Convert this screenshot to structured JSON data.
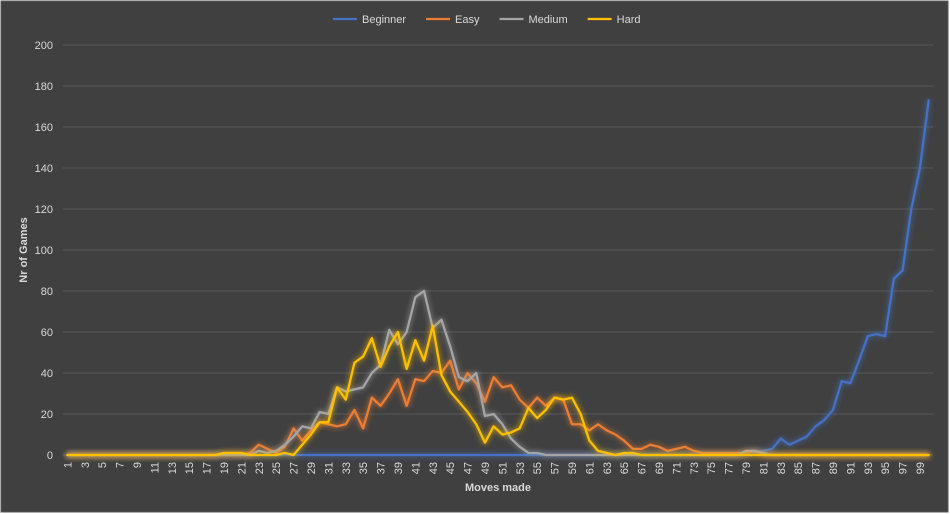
{
  "chart_data": {
    "type": "line",
    "title": "",
    "xlabel": "Moves made",
    "ylabel": "Nr of Games",
    "ylim": [
      0,
      200
    ],
    "yticks": [
      0,
      20,
      40,
      60,
      80,
      100,
      120,
      140,
      160,
      180,
      200
    ],
    "grid": true,
    "legend_position": "top",
    "background_color": "#404040",
    "x": [
      1,
      2,
      3,
      4,
      5,
      6,
      7,
      8,
      9,
      10,
      11,
      12,
      13,
      14,
      15,
      16,
      17,
      18,
      19,
      20,
      21,
      22,
      23,
      24,
      25,
      26,
      27,
      28,
      29,
      30,
      31,
      32,
      33,
      34,
      35,
      36,
      37,
      38,
      39,
      40,
      41,
      42,
      43,
      44,
      45,
      46,
      47,
      48,
      49,
      50,
      51,
      52,
      53,
      54,
      55,
      56,
      57,
      58,
      59,
      60,
      61,
      62,
      63,
      64,
      65,
      66,
      67,
      68,
      69,
      70,
      71,
      72,
      73,
      74,
      75,
      76,
      77,
      78,
      79,
      80,
      81,
      82,
      83,
      84,
      85,
      86,
      87,
      88,
      89,
      90,
      91,
      92,
      93,
      94,
      95,
      96,
      97,
      98,
      99,
      100
    ],
    "x_tick_labels": [
      "1",
      "3",
      "5",
      "7",
      "9",
      "11",
      "13",
      "15",
      "17",
      "19",
      "21",
      "23",
      "25",
      "27",
      "29",
      "31",
      "33",
      "35",
      "37",
      "39",
      "41",
      "43",
      "45",
      "47",
      "49",
      "51",
      "53",
      "55",
      "57",
      "59",
      "61",
      "63",
      "65",
      "67",
      "69",
      "71",
      "73",
      "75",
      "77",
      "79",
      "81",
      "83",
      "85",
      "87",
      "89",
      "91",
      "93",
      "95",
      "97",
      "99"
    ],
    "series": [
      {
        "name": "Beginner",
        "color": "#4472c4",
        "values": [
          0,
          0,
          0,
          0,
          0,
          0,
          0,
          0,
          0,
          0,
          0,
          0,
          0,
          0,
          0,
          0,
          0,
          0,
          0,
          0,
          0,
          0,
          0,
          0,
          0,
          0,
          0,
          0,
          0,
          0,
          0,
          0,
          0,
          0,
          0,
          0,
          0,
          0,
          0,
          0,
          0,
          0,
          0,
          0,
          0,
          0,
          0,
          0,
          0,
          0,
          0,
          0,
          0,
          0,
          0,
          0,
          0,
          0,
          0,
          0,
          0,
          0,
          0,
          0,
          0,
          0,
          0,
          0,
          0,
          0,
          0,
          0,
          0,
          0,
          0,
          0,
          0,
          0,
          0,
          1,
          2,
          3,
          8,
          5,
          7,
          9,
          14,
          17,
          22,
          36,
          35,
          46,
          58,
          59,
          58,
          86,
          90,
          120,
          140,
          173
        ]
      },
      {
        "name": "Easy",
        "color": "#ed7d31",
        "values": [
          0,
          0,
          0,
          0,
          0,
          0,
          0,
          0,
          0,
          0,
          0,
          0,
          0,
          0,
          0,
          0,
          0,
          0,
          0,
          0,
          0,
          1,
          5,
          3,
          1,
          4,
          13,
          7,
          12,
          16,
          15,
          14,
          15,
          22,
          13,
          28,
          24,
          30,
          37,
          24,
          37,
          36,
          41,
          40,
          46,
          32,
          40,
          35,
          26,
          38,
          33,
          34,
          27,
          23,
          28,
          24,
          28,
          27,
          15,
          15,
          12,
          15,
          12,
          10,
          7,
          3,
          3,
          5,
          4,
          2,
          3,
          4,
          2,
          1,
          1,
          1,
          1,
          1,
          1,
          2,
          0,
          0,
          0,
          0,
          0,
          0,
          0,
          0,
          0,
          0,
          0,
          0,
          0,
          0,
          0,
          0,
          0,
          0,
          0,
          0
        ]
      },
      {
        "name": "Medium",
        "color": "#a5a5a5",
        "values": [
          0,
          0,
          0,
          0,
          0,
          0,
          0,
          0,
          0,
          0,
          0,
          0,
          0,
          0,
          0,
          0,
          0,
          0,
          0,
          0,
          0,
          0,
          2,
          1,
          2,
          5,
          9,
          14,
          13,
          21,
          20,
          33,
          31,
          32,
          33,
          40,
          44,
          61,
          54,
          60,
          77,
          80,
          62,
          66,
          53,
          38,
          36,
          40,
          19,
          20,
          15,
          8,
          4,
          1,
          1,
          0,
          0,
          0,
          0,
          0,
          0,
          0,
          0,
          0,
          0,
          0,
          0,
          0,
          0,
          0,
          0,
          0,
          0,
          0,
          0,
          0,
          0,
          0,
          2,
          2,
          1,
          0,
          0,
          0,
          0,
          0,
          0,
          0,
          0,
          0,
          0,
          0,
          0,
          0,
          0,
          0,
          0,
          0,
          0,
          0
        ]
      },
      {
        "name": "Hard",
        "color": "#ffc000",
        "values": [
          0,
          0,
          0,
          0,
          0,
          0,
          0,
          0,
          0,
          0,
          0,
          0,
          0,
          0,
          0,
          0,
          0,
          0,
          1,
          1,
          1,
          0,
          0,
          0,
          0,
          1,
          0,
          5,
          10,
          16,
          16,
          33,
          27,
          45,
          48,
          57,
          43,
          53,
          60,
          42,
          56,
          46,
          63,
          39,
          31,
          26,
          21,
          15,
          6,
          14,
          10,
          11,
          13,
          23,
          18,
          22,
          28,
          27,
          28,
          20,
          7,
          2,
          1,
          0,
          1,
          1,
          0,
          0,
          0,
          0,
          0,
          0,
          0,
          0,
          0,
          0,
          0,
          0,
          0,
          0,
          0,
          0,
          0,
          0,
          0,
          0,
          0,
          0,
          0,
          0,
          0,
          0,
          0,
          0,
          0,
          0,
          0,
          0,
          0,
          0
        ]
      }
    ]
  }
}
